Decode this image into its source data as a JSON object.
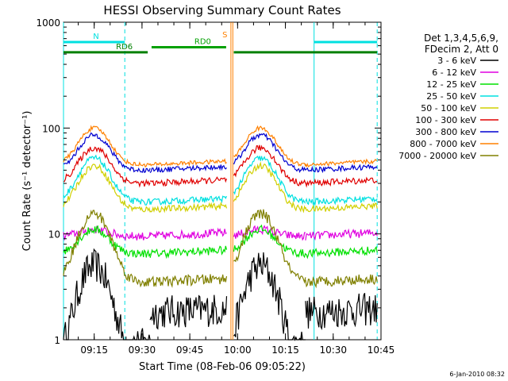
{
  "chart_data": {
    "type": "line",
    "title": "HESSI Observing Summary Count Rates",
    "xlabel": "Start Time (08-Feb-06 09:05:22)",
    "ylabel": "Count Rate (s⁻¹ detector⁻¹)",
    "yscale": "log",
    "ylim": [
      1,
      1000
    ],
    "xlim": [
      9.0894,
      10.75
    ],
    "x_units": "hours UT",
    "xticks": [
      {
        "value": 9.25,
        "label": "09:15"
      },
      {
        "value": 9.5,
        "label": "09:30"
      },
      {
        "value": 9.75,
        "label": "09:45"
      },
      {
        "value": 10.0,
        "label": "10:00"
      },
      {
        "value": 10.25,
        "label": "10:15"
      },
      {
        "value": 10.5,
        "label": "10:30"
      },
      {
        "value": 10.75,
        "label": "10:45"
      }
    ],
    "yticks": [
      {
        "value": 1,
        "label": "1"
      },
      {
        "value": 10,
        "label": "10"
      },
      {
        "value": 100,
        "label": "100"
      },
      {
        "value": 1000,
        "label": "1000"
      }
    ],
    "legend_header": [
      "Det 1,3,4,5,6,9,",
      "FDecim 2, Att 0"
    ],
    "legend_position": "right",
    "footer_date": "6-Jan-2010 08:32",
    "gaps": [
      [
        9.0894,
        9.0894
      ],
      [
        9.5425,
        9.5425
      ],
      [
        9.9425,
        9.98
      ],
      [
        10.355,
        10.355
      ]
    ],
    "orbit_segments": [
      [
        9.0894,
        9.5425
      ],
      [
        9.5425,
        9.9425
      ],
      [
        9.98,
        10.355
      ],
      [
        10.355,
        10.73
      ]
    ],
    "series": [
      {
        "name": "3 - 6 keV",
        "color": "#000000",
        "peak": 5.0,
        "base": 0.6,
        "floor": 1.8,
        "noise": 0.16
      },
      {
        "name": "6 - 12 keV",
        "color": "#e000e0",
        "peak": 11.0,
        "base": 9.5,
        "floor": 9.5,
        "noise": 0.04
      },
      {
        "name": "12 - 25 keV",
        "color": "#00e000",
        "peak": 11.0,
        "base": 6.5,
        "floor": 6.5,
        "noise": 0.04
      },
      {
        "name": "25 - 50 keV",
        "color": "#00e0e0",
        "peak": 52.0,
        "base": 20.0,
        "floor": 20.0,
        "noise": 0.03
      },
      {
        "name": "50 - 100 keV",
        "color": "#d0d000",
        "peak": 44.0,
        "base": 17.0,
        "floor": 17.0,
        "noise": 0.03
      },
      {
        "name": "100 - 300 keV",
        "color": "#e00000",
        "peak": 65.0,
        "base": 30.0,
        "floor": 30.0,
        "noise": 0.03
      },
      {
        "name": "300 - 800 keV",
        "color": "#0000d0",
        "peak": 86.0,
        "base": 40.0,
        "floor": 40.0,
        "noise": 0.025
      },
      {
        "name": "800 - 7000 keV",
        "color": "#ff8000",
        "peak": 100.0,
        "base": 45.0,
        "floor": 45.0,
        "noise": 0.02
      },
      {
        "name": "7000 - 20000 keV",
        "color": "#808000",
        "peak": 15.5,
        "base": 3.5,
        "floor": 3.5,
        "noise": 0.05
      }
    ],
    "annotations": [
      {
        "label": "N",
        "color": "#00e0e0",
        "y": 650,
        "x_start": 9.0894,
        "x_end": 9.41,
        "x_start2": 10.4,
        "x_end2": 10.73
      },
      {
        "label": "RD0",
        "color": "#00a000",
        "y": 580,
        "x_start": 9.55,
        "x_end": 9.94
      },
      {
        "label": "RD6",
        "color": "#008000",
        "y": 520,
        "x_start": 9.0894,
        "x_end": 9.53,
        "x_start2": 9.98,
        "x_end2": 10.73
      },
      {
        "label": "S",
        "color": "#ff8000",
        "y": 770,
        "x": 9.97
      }
    ],
    "vlines": [
      {
        "x": 9.0894,
        "color": "#00e0e0",
        "style": "solid"
      },
      {
        "x": 9.41,
        "color": "#00e0e0",
        "style": "dashed"
      },
      {
        "x": 10.4,
        "color": "#00e0e0",
        "style": "solid"
      },
      {
        "x": 10.73,
        "color": "#00e0e0",
        "style": "dashed"
      },
      {
        "x": 9.965,
        "color": "#ff8000",
        "style": "solid"
      },
      {
        "x": 9.975,
        "color": "#ff8000",
        "style": "solid"
      }
    ]
  }
}
